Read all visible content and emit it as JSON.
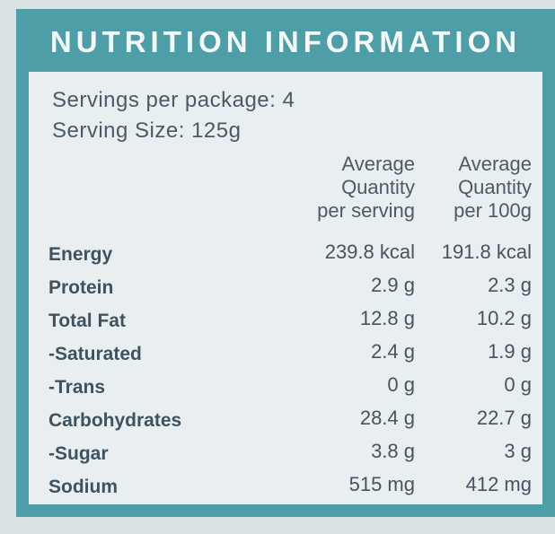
{
  "header": {
    "title": "NUTRITION INFORMATION"
  },
  "servings": [
    "Servings per package: 4",
    "Serving Size: 125g"
  ],
  "table": {
    "headers": [
      [
        "Average",
        "Quantity",
        "per serving"
      ],
      [
        "Average",
        "Quantity",
        "per 100g"
      ]
    ],
    "rows": [
      [
        "Energy",
        "239.8 kcal",
        "191.8 kcal"
      ],
      [
        "Protein",
        "2.9 g",
        "2.3 g"
      ],
      [
        "Total Fat",
        "12.8 g",
        "10.2 g"
      ],
      [
        "-Saturated",
        "2.4 g",
        "1.9 g"
      ],
      [
        "-Trans",
        "0 g",
        "0 g"
      ],
      [
        "Carbohydrates",
        "28.4 g",
        "22.7 g"
      ],
      [
        "-Sugar",
        "3.8 g",
        "3 g"
      ],
      [
        "Sodium",
        "515 mg",
        "412 mg"
      ]
    ]
  }
}
